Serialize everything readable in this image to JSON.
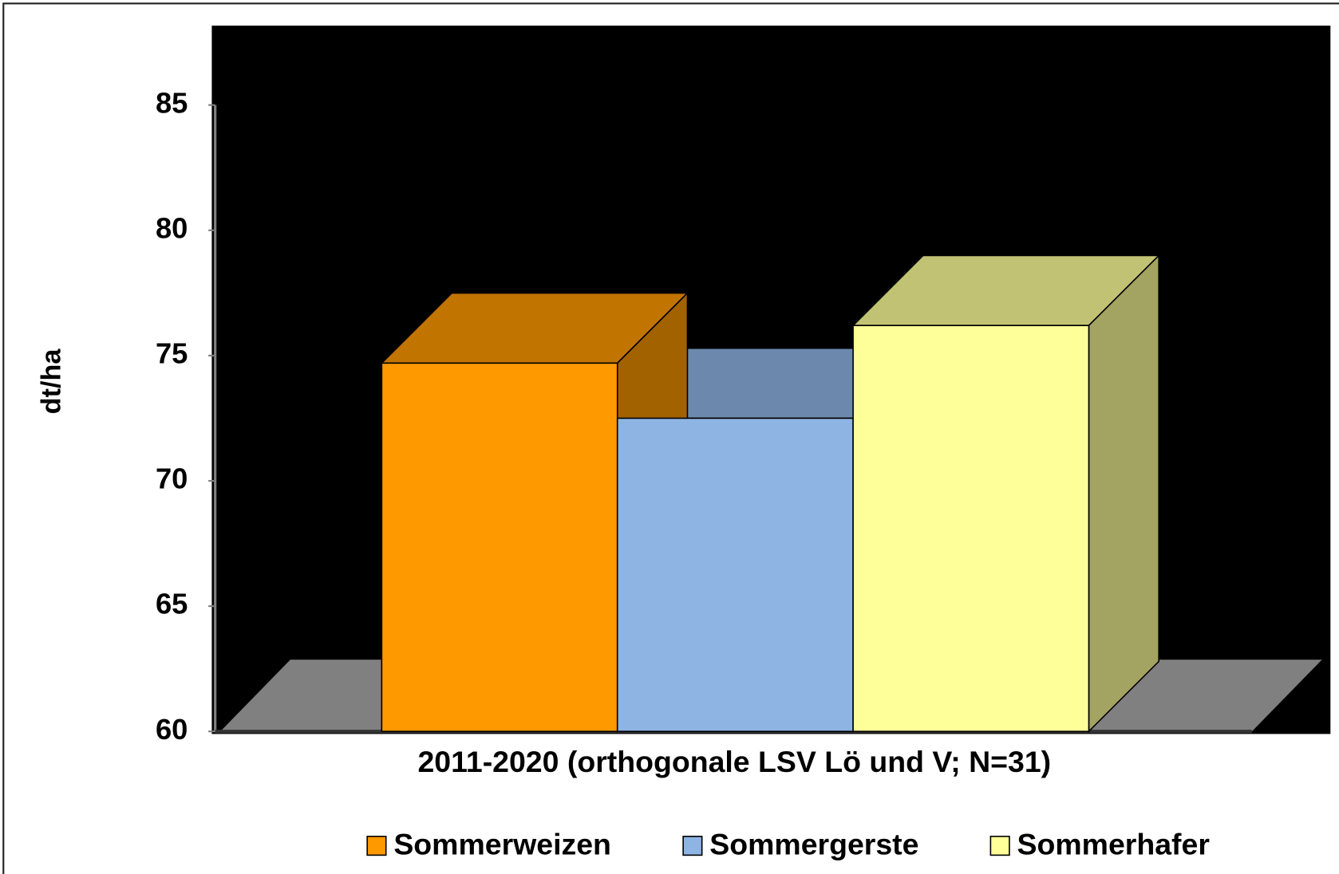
{
  "chart_data": {
    "type": "bar3d",
    "categories": [
      "2011-2020 (orthogonale LSV Lö und V; N=31)"
    ],
    "y_label": "dt/ha",
    "series": [
      {
        "name": "Sommerweizen",
        "color": "#ff9900",
        "values": [
          74.7
        ]
      },
      {
        "name": "Sommergerste",
        "color": "#8eb4e3",
        "values": [
          72.5
        ]
      },
      {
        "name": "Sommerhafer",
        "color": "#ffff99",
        "values": [
          76.2
        ]
      }
    ],
    "ylim": [
      60,
      85
    ],
    "yticks": [
      60,
      65,
      70,
      75,
      80,
      85
    ],
    "plot_background": "#000000",
    "legend": "bottom"
  }
}
